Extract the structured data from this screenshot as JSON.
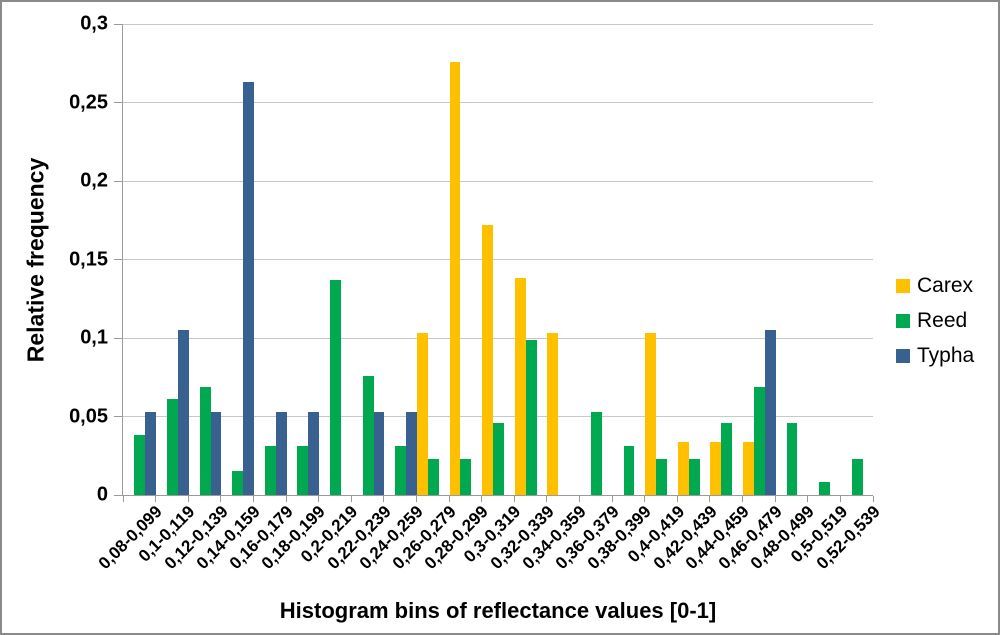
{
  "chart_data": {
    "type": "bar",
    "title": "",
    "xlabel": "Histogram bins of reflectance values [0-1]",
    "ylabel": "Relative frequency",
    "ylim": [
      0,
      0.3
    ],
    "grid": true,
    "legend_position": "right",
    "decimal_separator": ",",
    "ytick_values": [
      0,
      0.05,
      0.1,
      0.15,
      0.2,
      0.25,
      0.3
    ],
    "yticks_labels": [
      "0",
      "0,05",
      "0,1",
      "0,15",
      "0,2",
      "0,25",
      "0,3"
    ],
    "categories": [
      "0,08-0,099",
      "0,1-0,119",
      "0,12-0,139",
      "0,14-0,159",
      "0,16-0,179",
      "0,18-0,199",
      "0,2-0,219",
      "0,22-0,239",
      "0,24-0,259",
      "0,26-0,279",
      "0,28-0,299",
      "0,3-0,319",
      "0,32-0,339",
      "0,34-0,359",
      "0,36-0,379",
      "0,38-0,399",
      "0,4-0,419",
      "0,42-0,439",
      "0,44-0,459",
      "0,46-0,479",
      "0,48-0,499",
      "0,5-0,519",
      "0,52-0,539"
    ],
    "series": [
      {
        "name": "Carex",
        "color": "#FFC000",
        "values": [
          0,
          0,
          0,
          0,
          0,
          0,
          0,
          0,
          0,
          0.103,
          0.276,
          0.172,
          0.138,
          0.103,
          0,
          0,
          0.103,
          0.034,
          0.034,
          0.034,
          0,
          0,
          0
        ]
      },
      {
        "name": "Reed",
        "color": "#00A950",
        "values": [
          0.038,
          0.061,
          0.069,
          0.015,
          0.031,
          0.031,
          0.137,
          0.076,
          0.031,
          0.023,
          0.023,
          0.046,
          0.099,
          0,
          0.053,
          0.031,
          0.023,
          0.023,
          0.046,
          0.069,
          0.046,
          0.008,
          0.023
        ]
      },
      {
        "name": "Typha",
        "color": "#38618F",
        "values": [
          0.053,
          0.105,
          0.053,
          0.263,
          0.053,
          0.053,
          0,
          0.053,
          0.053,
          0,
          0,
          0,
          0,
          0,
          0,
          0,
          0,
          0,
          0,
          0.105,
          0,
          0,
          0
        ]
      }
    ],
    "colors": {
      "gridline": "#C8C8C8",
      "axis": "#9A9A9A",
      "frame_border": "#8A8A8A",
      "text": "#000000"
    }
  }
}
